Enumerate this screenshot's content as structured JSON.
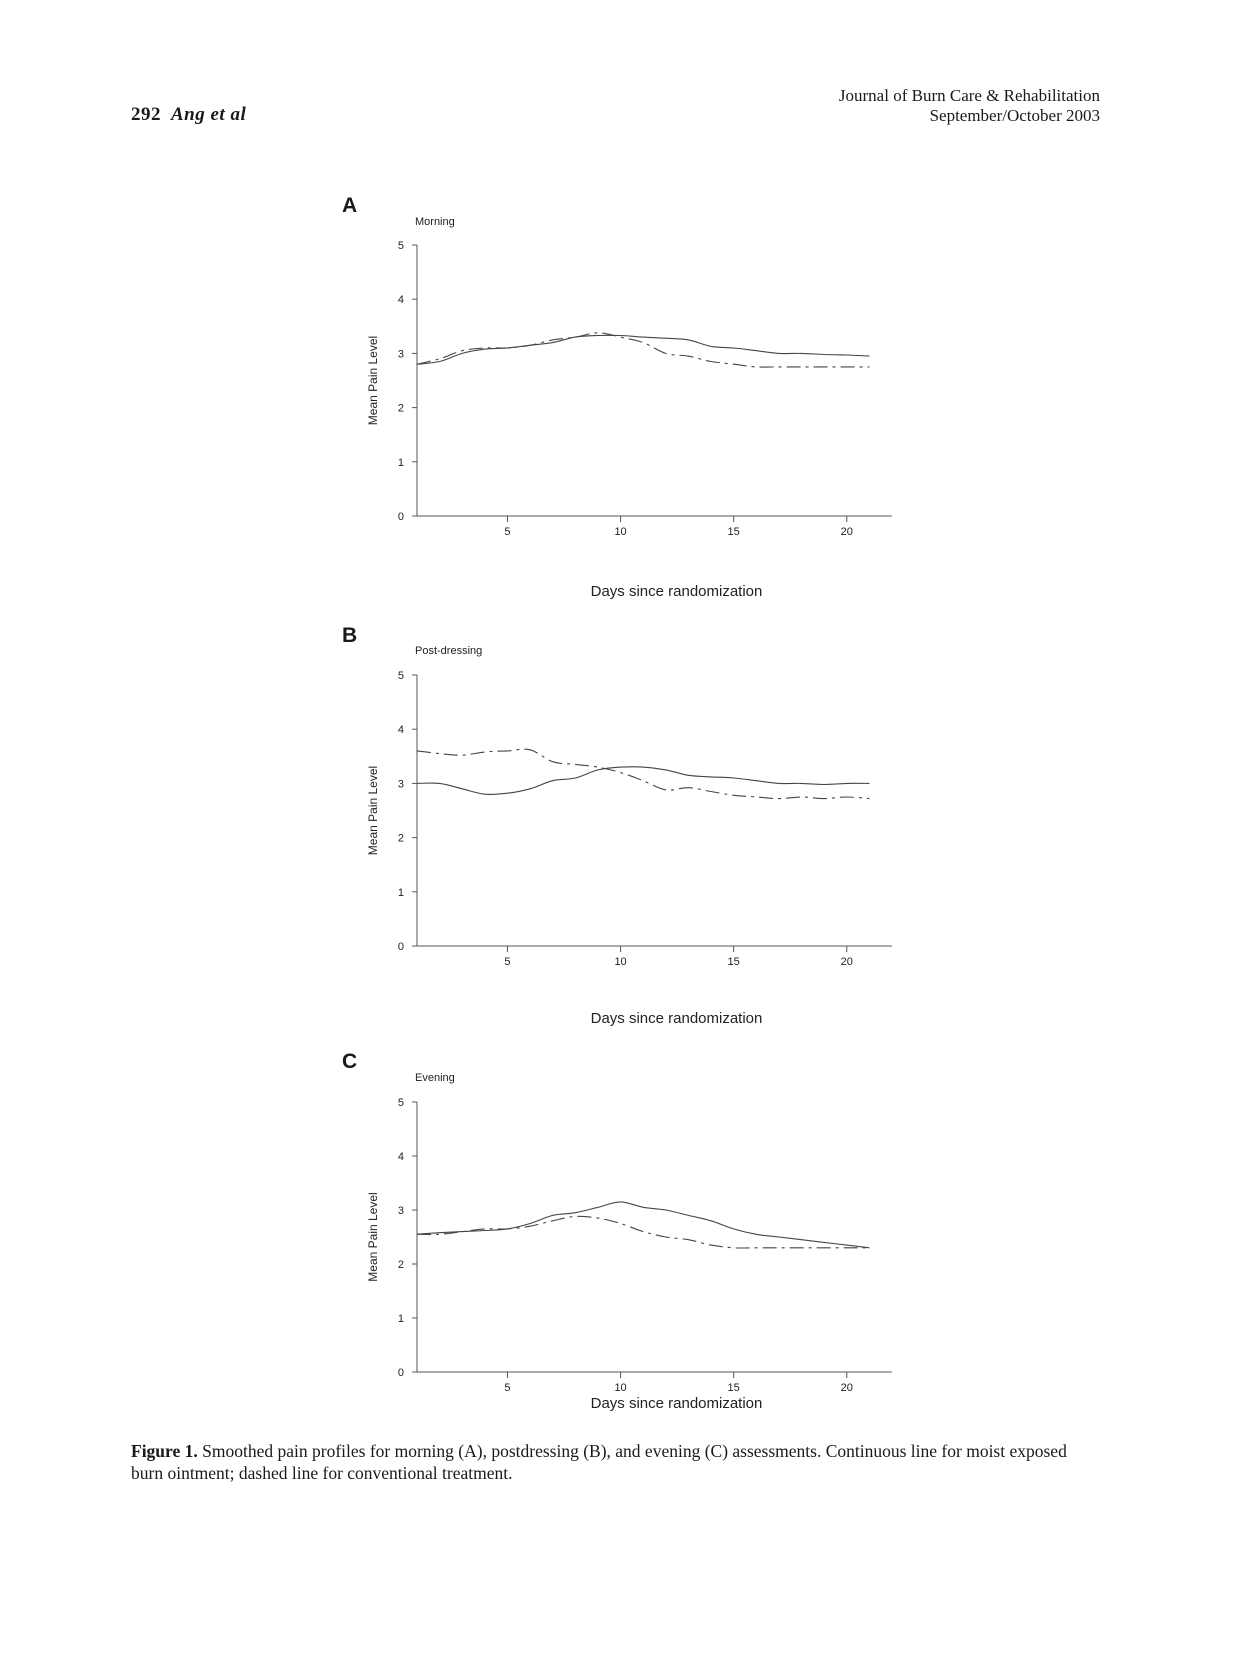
{
  "header": {
    "page_number": "292",
    "authors": "Ang et al",
    "journal": "Journal of Burn Care & Rehabilitation",
    "issue": "September/October 2003"
  },
  "chart_data": [
    {
      "type": "line",
      "panel_letter": "A",
      "title": "Morning",
      "xlabel": "Days since randomization",
      "ylabel": "Mean Pain Level",
      "xlim": [
        1,
        22
      ],
      "ylim": [
        0,
        5
      ],
      "x_ticks": [
        5,
        10,
        15,
        20
      ],
      "y_ticks": [
        0,
        1,
        2,
        3,
        4,
        5
      ],
      "series": [
        {
          "style": "continuous",
          "x": [
            1,
            2,
            3,
            4,
            5,
            6,
            7,
            8,
            9,
            10,
            11,
            12,
            13,
            14,
            15,
            16,
            17,
            18,
            19,
            20,
            21
          ],
          "y": [
            2.8,
            2.85,
            3.0,
            3.08,
            3.1,
            3.15,
            3.2,
            3.3,
            3.33,
            3.33,
            3.3,
            3.28,
            3.25,
            3.13,
            3.1,
            3.05,
            3.0,
            3.0,
            2.98,
            2.97,
            2.95
          ]
        },
        {
          "style": "dashed",
          "x": [
            1,
            2,
            3,
            4,
            5,
            6,
            7,
            8,
            9,
            10,
            11,
            12,
            13,
            14,
            15,
            16,
            17,
            18,
            19,
            20,
            21
          ],
          "y": [
            2.8,
            2.9,
            3.05,
            3.1,
            3.1,
            3.15,
            3.25,
            3.3,
            3.38,
            3.3,
            3.2,
            3.0,
            2.95,
            2.85,
            2.8,
            2.75,
            2.75,
            2.75,
            2.75,
            2.75,
            2.75
          ]
        }
      ]
    },
    {
      "type": "line",
      "panel_letter": "B",
      "title": "Post-dressing",
      "xlabel": "Days since randomization",
      "ylabel": "Mean Pain Level",
      "xlim": [
        1,
        22
      ],
      "ylim": [
        0,
        5
      ],
      "x_ticks": [
        5,
        10,
        15,
        20
      ],
      "y_ticks": [
        0,
        1,
        2,
        3,
        4,
        5
      ],
      "series": [
        {
          "style": "continuous",
          "x": [
            1,
            2,
            3,
            4,
            5,
            6,
            7,
            8,
            9,
            10,
            11,
            12,
            13,
            14,
            15,
            16,
            17,
            18,
            19,
            20,
            21
          ],
          "y": [
            3.0,
            3.0,
            2.9,
            2.8,
            2.82,
            2.9,
            3.05,
            3.1,
            3.25,
            3.3,
            3.3,
            3.25,
            3.15,
            3.12,
            3.1,
            3.05,
            3.0,
            3.0,
            2.98,
            3.0,
            3.0
          ]
        },
        {
          "style": "dashed",
          "x": [
            1,
            2,
            3,
            4,
            5,
            6,
            7,
            8,
            9,
            10,
            11,
            12,
            13,
            14,
            15,
            16,
            17,
            18,
            19,
            20,
            21
          ],
          "y": [
            3.6,
            3.55,
            3.52,
            3.58,
            3.6,
            3.62,
            3.4,
            3.35,
            3.3,
            3.2,
            3.05,
            2.88,
            2.92,
            2.85,
            2.78,
            2.75,
            2.72,
            2.75,
            2.72,
            2.75,
            2.72
          ]
        }
      ]
    },
    {
      "type": "line",
      "panel_letter": "C",
      "title": "Evening",
      "xlabel": "Days since randomization",
      "ylabel": "Mean Pain Level",
      "xlim": [
        1,
        22
      ],
      "ylim": [
        0,
        5
      ],
      "x_ticks": [
        5,
        10,
        15,
        20
      ],
      "y_ticks": [
        0,
        1,
        2,
        3,
        4,
        5
      ],
      "series": [
        {
          "style": "continuous",
          "x": [
            1,
            2,
            3,
            4,
            5,
            6,
            7,
            8,
            9,
            10,
            11,
            12,
            13,
            14,
            15,
            16,
            17,
            18,
            19,
            20,
            21
          ],
          "y": [
            2.55,
            2.58,
            2.6,
            2.62,
            2.65,
            2.75,
            2.9,
            2.95,
            3.05,
            3.15,
            3.05,
            3.0,
            2.9,
            2.8,
            2.65,
            2.55,
            2.5,
            2.45,
            2.4,
            2.35,
            2.3
          ]
        },
        {
          "style": "dashed",
          "x": [
            1,
            2,
            3,
            4,
            5,
            6,
            7,
            8,
            9,
            10,
            11,
            12,
            13,
            14,
            15,
            16,
            17,
            18,
            19,
            20,
            21
          ],
          "y": [
            2.55,
            2.55,
            2.6,
            2.65,
            2.65,
            2.7,
            2.8,
            2.88,
            2.85,
            2.75,
            2.6,
            2.5,
            2.45,
            2.35,
            2.3,
            2.3,
            2.3,
            2.3,
            2.3,
            2.3,
            2.3
          ]
        }
      ]
    }
  ],
  "caption": {
    "label": "Figure 1.",
    "text": "Smoothed pain profiles for morning (A), postdressing (B), and evening (C) assessments. Continuous line for moist exposed burn ointment; dashed line for conventional treatment."
  }
}
